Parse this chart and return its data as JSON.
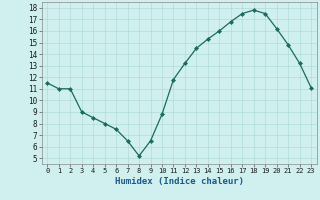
{
  "x": [
    0,
    1,
    2,
    3,
    4,
    5,
    6,
    7,
    8,
    9,
    10,
    11,
    12,
    13,
    14,
    15,
    16,
    17,
    18,
    19,
    20,
    21,
    22,
    23
  ],
  "y": [
    11.5,
    11.0,
    11.0,
    9.0,
    8.5,
    8.0,
    7.5,
    6.5,
    5.2,
    6.5,
    8.8,
    11.8,
    13.2,
    14.5,
    15.3,
    16.0,
    16.8,
    17.5,
    17.8,
    17.5,
    16.2,
    14.8,
    13.2,
    11.1
  ],
  "line_color": "#1a6b5a",
  "marker": "D",
  "marker_size": 2.0,
  "bg_color": "#cff0ee",
  "grid_color": "#b0dbd8",
  "xlabel": "Humidex (Indice chaleur)",
  "ylabel_ticks": [
    5,
    6,
    7,
    8,
    9,
    10,
    11,
    12,
    13,
    14,
    15,
    16,
    17,
    18
  ],
  "xtick_labels": [
    "0",
    "1",
    "2",
    "3",
    "4",
    "5",
    "6",
    "7",
    "8",
    "9",
    "10",
    "11",
    "12",
    "13",
    "14",
    "15",
    "16",
    "17",
    "18",
    "19",
    "20",
    "21",
    "22",
    "23"
  ],
  "xlim": [
    -0.5,
    23.5
  ],
  "ylim": [
    4.5,
    18.5
  ]
}
